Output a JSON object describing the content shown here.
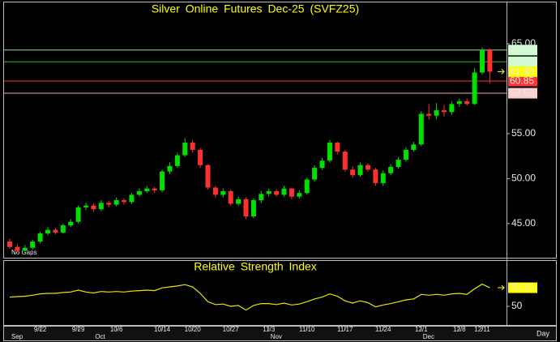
{
  "chart_data": [
    {
      "type": "candlestick",
      "title": "Silver Online Futures Dec-25 (SVFZ25)",
      "note": "No Gaps",
      "x_axis_unit": "Day",
      "categories": [
        null,
        null,
        null,
        null,
        "9/22",
        null,
        null,
        null,
        null,
        "9/29",
        null,
        null,
        null,
        null,
        "10/6",
        null,
        null,
        null,
        null,
        null,
        "10/14",
        null,
        null,
        null,
        "10/20",
        null,
        null,
        null,
        null,
        "10/27",
        null,
        null,
        null,
        null,
        "11/3",
        null,
        null,
        null,
        null,
        "11/10",
        null,
        null,
        null,
        null,
        "11/17",
        null,
        null,
        null,
        null,
        "11/24",
        null,
        null,
        null,
        null,
        "12/1",
        null,
        null,
        null,
        null,
        "12/8",
        null,
        null,
        "12/11",
        null
      ],
      "month_categories": [
        "Sep",
        null,
        null,
        null,
        null,
        null,
        null,
        null,
        null,
        null,
        null,
        "Oct",
        null,
        null,
        null,
        null,
        null,
        null,
        null,
        null,
        null,
        null,
        null,
        null,
        null,
        null,
        null,
        null,
        null,
        null,
        null,
        null,
        null,
        null,
        "Nov",
        null,
        null,
        null,
        null,
        null,
        null,
        null,
        null,
        null,
        null,
        null,
        null,
        null,
        null,
        null,
        null,
        null,
        null,
        null,
        "Dec",
        null,
        null,
        null,
        null,
        null,
        null,
        null,
        null,
        null
      ],
      "open": [
        43.0,
        42.4,
        42.0,
        42.3,
        43.0,
        43.9,
        44.3,
        44.0,
        44.8,
        45.2,
        46.8,
        47.0,
        46.6,
        47.3,
        47.1,
        47.6,
        47.4,
        48.2,
        48.6,
        48.9,
        48.7,
        50.8,
        51.4,
        52.6,
        54.0,
        53.2,
        51.5,
        49.0,
        48.2,
        48.6,
        47.2,
        47.7,
        45.8,
        47.6,
        48.3,
        48.6,
        48.2,
        48.9,
        48.0,
        48.4,
        49.9,
        51.2,
        52.0,
        54.0,
        53.0,
        51.0,
        50.4,
        51.5,
        51.0,
        49.5,
        50.6,
        51.3,
        52.1,
        53.2,
        53.8,
        57.2,
        57.0,
        57.6,
        57.4,
        58.3,
        58.6,
        58.3,
        61.8,
        64.3
      ],
      "high": [
        43.3,
        42.7,
        42.6,
        43.2,
        44.1,
        44.6,
        44.5,
        45.0,
        45.5,
        47.0,
        47.3,
        47.2,
        47.6,
        47.5,
        47.9,
        47.8,
        48.4,
        48.9,
        49.2,
        49.1,
        51.0,
        51.8,
        52.9,
        54.5,
        54.3,
        53.4,
        51.6,
        49.2,
        48.9,
        48.8,
        48.0,
        47.9,
        47.8,
        48.6,
        48.9,
        48.8,
        49.2,
        49.0,
        48.7,
        50.1,
        51.5,
        52.3,
        54.3,
        54.1,
        53.2,
        51.4,
        51.8,
        51.7,
        51.2,
        50.9,
        51.6,
        52.4,
        53.5,
        54.1,
        57.5,
        58.3,
        58.4,
        58.2,
        58.6,
        58.9,
        58.9,
        62.3,
        64.6,
        64.5
      ],
      "low": [
        42.2,
        41.8,
        41.8,
        42.1,
        42.8,
        43.7,
        43.8,
        43.9,
        44.6,
        45.0,
        46.5,
        46.3,
        46.4,
        46.8,
        46.9,
        47.1,
        47.2,
        48.0,
        48.4,
        48.4,
        48.5,
        50.5,
        51.2,
        52.4,
        52.9,
        51.2,
        48.8,
        47.9,
        47.9,
        47.0,
        47.0,
        45.5,
        45.6,
        47.3,
        48.0,
        48.0,
        48.0,
        47.7,
        47.8,
        48.2,
        49.7,
        51.0,
        51.8,
        52.7,
        50.8,
        50.1,
        50.2,
        50.8,
        49.2,
        49.2,
        50.4,
        51.1,
        51.9,
        53.0,
        53.6,
        56.6,
        56.6,
        56.9,
        57.1,
        58.0,
        58.1,
        58.2,
        61.6,
        60.6
      ],
      "close": [
        42.4,
        42.0,
        42.3,
        43.0,
        43.9,
        44.3,
        44.0,
        44.8,
        45.2,
        46.8,
        47.0,
        46.6,
        47.3,
        47.1,
        47.6,
        47.4,
        48.2,
        48.6,
        48.9,
        48.7,
        50.8,
        51.4,
        52.6,
        54.0,
        53.2,
        51.5,
        49.0,
        48.2,
        48.6,
        47.2,
        47.7,
        45.8,
        47.6,
        48.3,
        48.6,
        48.2,
        48.9,
        48.0,
        48.4,
        49.9,
        51.2,
        52.0,
        54.0,
        53.0,
        51.0,
        50.4,
        51.5,
        51.0,
        49.5,
        50.6,
        51.3,
        52.1,
        53.2,
        53.8,
        57.2,
        57.0,
        57.6,
        57.4,
        58.3,
        58.6,
        58.3,
        61.8,
        64.3,
        61.9
      ],
      "up_color": "#00e000",
      "down_color": "#ff3030",
      "ylim": [
        41.2,
        69.6
      ],
      "yticks": [
        {
          "value": 45,
          "label": "45.00"
        },
        {
          "value": 50,
          "label": "50.00"
        },
        {
          "value": 55,
          "label": "55.00"
        },
        {
          "value": 65,
          "label": "65.00"
        }
      ],
      "levels": [
        {
          "value": 64.3,
          "label": "64.30",
          "color": "#9ed89e",
          "label_color": "#ccffcc"
        },
        {
          "value": 63,
          "label": "63.00",
          "color": "#22c422",
          "label_color": "#ccffcc"
        },
        {
          "value": 60.85,
          "label": "60.85",
          "color": "#ff3030",
          "label_color": "#ff3333"
        },
        {
          "value": 59.5,
          "label": "59.50",
          "color": "#ffaaaa",
          "label_color": "#ffcccc"
        }
      ],
      "last_price": {
        "value": 61.9,
        "label": "61.90",
        "color": "#ffff00"
      }
    },
    {
      "type": "line",
      "title": "Relative Strength Index",
      "color": "#e6e600",
      "values": [
        60,
        60.5,
        61,
        62,
        63.5,
        64,
        64,
        65,
        65.5,
        67.5,
        65.5,
        64.5,
        66,
        65.5,
        66,
        65.5,
        66.5,
        67,
        67.5,
        67,
        70,
        71,
        72,
        73.5,
        71,
        64,
        55,
        52,
        52.5,
        50,
        51,
        46,
        51,
        53,
        53,
        52,
        53.5,
        51.5,
        52.5,
        55,
        58,
        60,
        63.5,
        61,
        56,
        53.5,
        56,
        54,
        49.5,
        51.5,
        53,
        55,
        57,
        58,
        63,
        62,
        63,
        62,
        63.5,
        64,
        63,
        69,
        74,
        70.1
      ],
      "ylim": [
        30.8,
        99
      ],
      "yticks": [
        50
      ],
      "last_value": {
        "value": 70.1,
        "label": "70.10",
        "color": "#ffff00"
      }
    }
  ]
}
